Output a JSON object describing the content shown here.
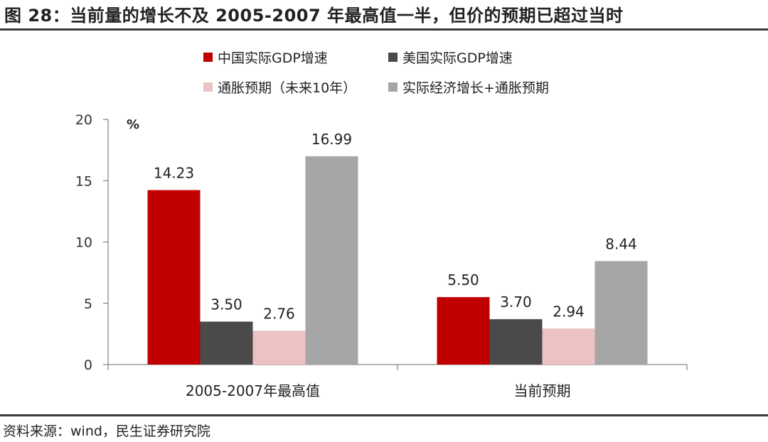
{
  "title": "图 28：当前量的增长不及 2005-2007 年最高值一半，但价的预期已超过当时",
  "source": "资料来源：wind，民生证券研究院",
  "chart_data": {
    "type": "bar",
    "unit_label": "%",
    "categories": [
      "2005-2007年最高值",
      "当前预期"
    ],
    "series": [
      {
        "name": "中国实际GDP增速",
        "color": "#c00000",
        "values": [
          14.23,
          5.5
        ],
        "labels": [
          "14.23",
          "5.50"
        ]
      },
      {
        "name": "美国实际GDP增速",
        "color": "#4a4a4a",
        "values": [
          3.5,
          3.7
        ],
        "labels": [
          "3.50",
          "3.70"
        ]
      },
      {
        "name": "通胀预期（未来10年）",
        "color": "#ecc2c2",
        "values": [
          2.76,
          2.94
        ],
        "labels": [
          "2.76",
          "2.94"
        ]
      },
      {
        "name": "实际经济增长+通胀预期",
        "color": "#a6a6a6",
        "values": [
          16.99,
          8.44
        ],
        "labels": [
          "16.99",
          "8.44"
        ]
      }
    ],
    "yticks": [
      "0",
      "5",
      "10",
      "15",
      "20"
    ],
    "ylim": [
      0,
      20
    ],
    "legend_position": "top"
  }
}
